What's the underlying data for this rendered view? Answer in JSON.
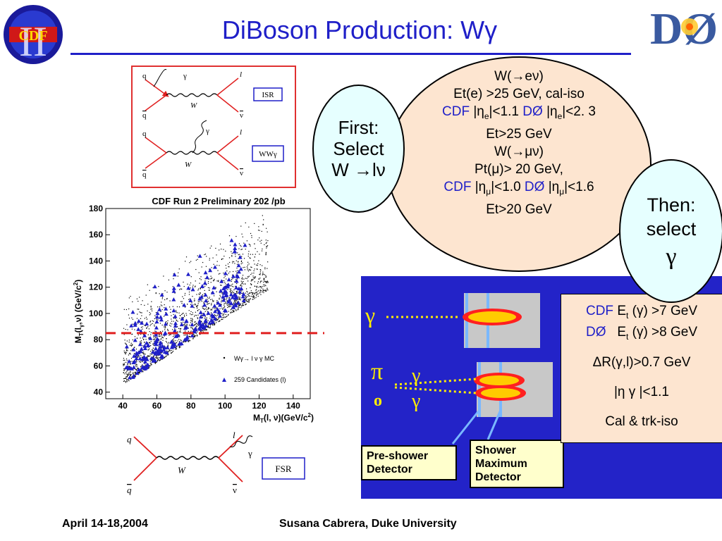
{
  "title": "DiBoson Production: W",
  "title_gamma": "γ",
  "logos": {
    "cdf": "CDF",
    "cdf_roman": "II",
    "d0": "DØ"
  },
  "feynman": {
    "top": {
      "q": "q",
      "qbar": "q",
      "gamma": "γ",
      "l": "l",
      "nu": "ν",
      "W": "W",
      "label": "ISR"
    },
    "mid": {
      "q": "q",
      "qbar": "q",
      "gamma": "γ",
      "l": "l",
      "nu": "ν",
      "W": "W",
      "label": "WWγ"
    },
    "bottom": {
      "q": "q",
      "qbar": "q",
      "gamma": "γ",
      "l": "l",
      "nu": "ν",
      "W": "W",
      "label": "FSR"
    }
  },
  "plot": {
    "title": "CDF Run 2 Preliminary 202 /pb",
    "ylabel": "M",
    "xlabel": "M",
    "legend_mc": "Wγ→ l ν γ MC",
    "legend_cand": "259 Candidates (l)"
  },
  "chart_data": {
    "type": "scatter",
    "title": "CDF Run 2 Preliminary 202 /pb",
    "xlabel": "M_T(l, ν)(GeV/c²)",
    "ylabel": "M_T(lγ,ν) (GeV/c²)",
    "xlim": [
      30,
      150
    ],
    "ylim": [
      35,
      180
    ],
    "xticks": [
      40,
      60,
      80,
      100,
      120,
      140
    ],
    "yticks": [
      40,
      60,
      80,
      100,
      120,
      140,
      160,
      180
    ],
    "cut_line_y": 85,
    "series": [
      {
        "name": "Wγ→ l ν γ MC",
        "marker": "dot",
        "color": "#000000"
      },
      {
        "name": "259 Candidates (l)",
        "marker": "triangle",
        "color": "#1f1fc8"
      }
    ]
  },
  "conditions": {
    "w_e": "W(→eν)",
    "et_e": "Et(e) >25 GeV, cal-iso",
    "cdf": "CDF",
    "eta_e_cdf": "|η",
    "eta_e_cdf_sub": "e",
    "eta_e_cdf_val": "|<1.1",
    "d0": "DØ",
    "eta_e_d0": "|η",
    "eta_e_d0_sub": "e",
    "eta_e_d0_val": "|<2. 3",
    "et_25": "Et>25 GeV",
    "w_mu": "W(→μν)",
    "pt_mu": "Pt(μ)> 20 GeV,",
    "eta_mu_cdf": "|η",
    "eta_mu_cdf_sub": "μ",
    "eta_mu_cdf_val": "|<1.0",
    "eta_mu_d0": "|η",
    "eta_mu_d0_sub": "μ",
    "eta_mu_d0_val": "|<1.6",
    "et_20": "Et>20 GeV"
  },
  "first_bubble": {
    "l1": "First:",
    "l2": "Select",
    "l3": "W →lν"
  },
  "then_bubble": {
    "l1": "Then:",
    "l2": "select",
    "l3": "γ"
  },
  "detector": {
    "gamma": "γ",
    "pi": "π",
    "pi_sup": "o",
    "gamma2": "γ",
    "gamma3": "γ",
    "preshower": {
      "l1": "Pre-shower",
      "l2": "Detector"
    },
    "showermax": {
      "l1": "Shower",
      "l2": "Maximum",
      "l3": "Detector"
    }
  },
  "photon_criteria": {
    "cdf": "CDF",
    "cdf_et": "E",
    "cdf_et_sub": "t",
    "cdf_val": " (γ) >7 GeV",
    "d0": "DØ",
    "d0_et": "E",
    "d0_et_sub": "t",
    "d0_val": " (γ) >8 GeV",
    "dr": "ΔR(γ,l)>0.7 GeV",
    "eta": "|η  γ |<1.1",
    "iso": "Cal & trk-iso"
  },
  "footer": {
    "date": "April 14-18,2004",
    "author": "Susana Cabrera, Duke University"
  }
}
